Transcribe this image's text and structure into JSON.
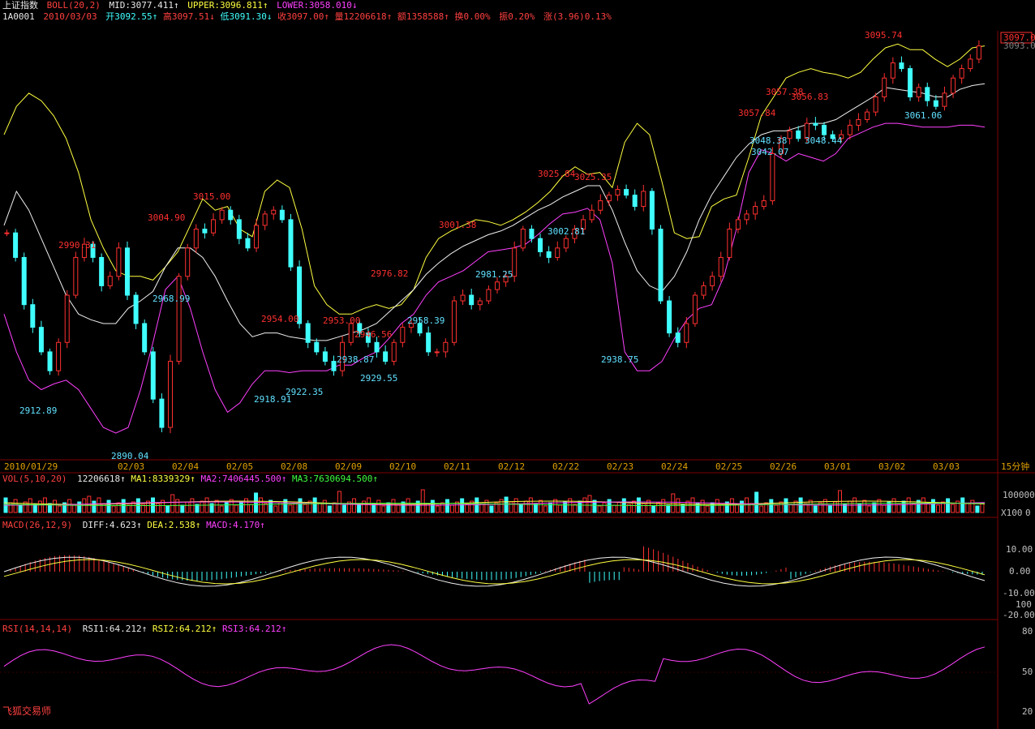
{
  "header": {
    "index_name": "上证指数",
    "indicator": "BOLL(20,2)",
    "mid_label": "MID:3077.411↑",
    "upper_label": "UPPER:3096.811↑",
    "lower_label": "LOWER:3058.010↓",
    "code": "1A0001",
    "date": "2010/03/03",
    "open": "开3092.55↑",
    "high": "高3097.51↓",
    "low": "低3091.30↓",
    "close": "收3097.00↑",
    "volume": "量12206618↑",
    "amount": "额1358588↑",
    "turnover": "换0.00%",
    "amplitude": "振0.20%",
    "change": "涨(3.96)0.13%"
  },
  "colors": {
    "up": "#ff3030",
    "down": "#40ffff",
    "upper": "#ffff40",
    "mid": "#f0f0f0",
    "lower": "#ff40ff",
    "grid": "#800000"
  },
  "price_panel": {
    "current_price_tag": "3097.0",
    "current_price_tag2": "3093.0"
  },
  "x_axis": {
    "dates": [
      "2010/01/29",
      "02/03",
      "02/04",
      "02/05",
      "02/08",
      "02/09",
      "02/10",
      "02/11",
      "02/12",
      "02/22",
      "02/23",
      "02/24",
      "02/25",
      "02/26",
      "03/01",
      "03/02",
      "03/03"
    ],
    "period": "15分钟"
  },
  "vol_panel": {
    "label": "VOL(5,10,20)",
    "value": "12206618↑",
    "ma1": "MA1:8339329↑",
    "ma2": "MA2:7406445.500↑",
    "ma3": "MA3:7630694.500↑",
    "axis_top": "100000",
    "axis_unit": "X100",
    "axis_zero": "0"
  },
  "macd_panel": {
    "label": "MACD(26,12,9)",
    "diff": "DIFF:4.623↑",
    "dea": "DEA:2.538↑",
    "macd": "MACD:4.170↑",
    "ticks": [
      "10.00",
      "0.00",
      "-10.00",
      "100",
      "-20.00"
    ]
  },
  "rsi_panel": {
    "label": "RSI(14,14,14)",
    "rsi1": "RSI1:64.212↑",
    "rsi2": "RSI2:64.212↑",
    "rsi3": "RSI3:64.212↑",
    "ticks": [
      "80",
      "50",
      "20"
    ]
  },
  "watermark": "飞狐交易师",
  "chart_data": {
    "type": "candlestick",
    "title": "上证指数",
    "ylim": [
      2880,
      3105
    ],
    "upper": [
      3050,
      3065,
      3072,
      3068,
      3060,
      3048,
      3030,
      3005,
      2990,
      2978,
      2975,
      2975,
      2973,
      2980,
      2988,
      3002,
      3016,
      3010,
      3012,
      3000,
      2996,
      3020,
      3026,
      3022,
      3000,
      2970,
      2960,
      2955,
      2955,
      2958,
      2960,
      2958,
      2960,
      2968,
      2985,
      2995,
      2999,
      3002,
      3005,
      3004,
      3002,
      3005,
      3009,
      3014,
      3020,
      3028,
      3033,
      3029,
      3030,
      3022,
      3046,
      3056,
      3050,
      3025,
      2998,
      2995,
      2996,
      3012,
      3016,
      3018,
      3038,
      3060,
      3070,
      3080,
      3083,
      3085,
      3083,
      3082,
      3080,
      3083,
      3090,
      3096,
      3098,
      3095,
      3095,
      3090,
      3086,
      3090,
      3096,
      3097
    ],
    "mid": [
      3002,
      3020,
      3010,
      2995,
      2980,
      2965,
      2955,
      2952,
      2950,
      2950,
      2958,
      2962,
      2967,
      2980,
      2990,
      2990,
      2985,
      2975,
      2962,
      2950,
      2943,
      2945,
      2945,
      2943,
      2942,
      2941,
      2941,
      2943,
      2945,
      2947,
      2950,
      2956,
      2962,
      2968,
      2976,
      2982,
      2987,
      2991,
      2994,
      2997,
      2999,
      3002,
      3006,
      3010,
      3013,
      3017,
      3020,
      3023,
      3023,
      3010,
      2993,
      2978,
      2970,
      2967,
      2975,
      2988,
      3005,
      3018,
      3028,
      3038,
      3045,
      3050,
      3052,
      3052,
      3054,
      3056,
      3056,
      3058,
      3062,
      3066,
      3070,
      3075,
      3074,
      3073,
      3072,
      3070,
      3070,
      3074,
      3076,
      3077
    ],
    "lower": [
      2955,
      2935,
      2920,
      2915,
      2918,
      2920,
      2915,
      2905,
      2895,
      2892,
      2895,
      2915,
      2940,
      2968,
      2975,
      2958,
      2935,
      2915,
      2903,
      2908,
      2918,
      2925,
      2925,
      2924,
      2925,
      2925,
      2925,
      2928,
      2928,
      2932,
      2935,
      2942,
      2950,
      2955,
      2965,
      2972,
      2975,
      2978,
      2983,
      2988,
      2989,
      2990,
      2992,
      2997,
      3003,
      3008,
      3009,
      3011,
      3005,
      2982,
      2935,
      2925,
      2925,
      2930,
      2942,
      2952,
      2958,
      2960,
      2975,
      3000,
      3030,
      3042,
      3040,
      3036,
      3040,
      3038,
      3036,
      3040,
      3048,
      3051,
      3054,
      3056,
      3056,
      3055,
      3054,
      3054,
      3054,
      3055,
      3055,
      3054
    ],
    "candles_note": "open/close estimated from screenshot; used for candle bodies",
    "closes": [
      2998,
      2985,
      2960,
      2948,
      2935,
      2925,
      2940,
      2965,
      2985,
      2992,
      2985,
      2970,
      2975,
      2990,
      2965,
      2950,
      2935,
      2910,
      2895,
      2930,
      2975,
      2990,
      3000,
      2998,
      3005,
      3010,
      3005,
      2995,
      2990,
      3002,
      3008,
      3010,
      3005,
      2980,
      2950,
      2940,
      2935,
      2930,
      2925,
      2940,
      2950,
      2945,
      2940,
      2935,
      2930,
      2940,
      2948,
      2950,
      2945,
      2935,
      2935,
      2940,
      2962,
      2965,
      2960,
      2962,
      2968,
      2972,
      2975,
      2990,
      3000,
      2995,
      2988,
      2985,
      2990,
      2995,
      3000,
      3005,
      3010,
      3015,
      3018,
      3021,
      3018,
      3012,
      3020,
      3000,
      2962,
      2945,
      2940,
      2950,
      2965,
      2970,
      2975,
      2985,
      3000,
      3005,
      3008,
      3012,
      3015,
      3040,
      3048,
      3052,
      3048,
      3056,
      3055,
      3050,
      3048,
      3050,
      3055,
      3058,
      3062,
      3070,
      3080,
      3088,
      3085,
      3070,
      3075,
      3068,
      3065,
      3072,
      3080,
      3085,
      3090,
      3097
    ]
  },
  "price_labels": [
    {
      "text": "2990.31",
      "color": "red"
    },
    {
      "text": "3004.90",
      "color": "red"
    },
    {
      "text": "3015.00",
      "color": "red"
    },
    {
      "text": "2968.99",
      "color": "cyan"
    },
    {
      "text": "2912.89",
      "color": "cyan"
    },
    {
      "text": "2890.04",
      "color": "cyan"
    },
    {
      "text": "2954.00",
      "color": "red"
    },
    {
      "text": "2953.00",
      "color": "red"
    },
    {
      "text": "2946.56",
      "color": "red"
    },
    {
      "text": "2918.91",
      "color": "cyan"
    },
    {
      "text": "2922.35",
      "color": "cyan"
    },
    {
      "text": "2938.87",
      "color": "cyan"
    },
    {
      "text": "2929.55",
      "color": "cyan"
    },
    {
      "text": "2976.82",
      "color": "red"
    },
    {
      "text": "2958.39",
      "color": "cyan"
    },
    {
      "text": "3001.38",
      "color": "red"
    },
    {
      "text": "2981.25",
      "color": "cyan"
    },
    {
      "text": "3025.84",
      "color": "red"
    },
    {
      "text": "3025.35",
      "color": "red"
    },
    {
      "text": "3002.81",
      "color": "cyan"
    },
    {
      "text": "2938.75",
      "color": "cyan"
    },
    {
      "text": "3057.84",
      "color": "red"
    },
    {
      "text": "3057.38",
      "color": "red"
    },
    {
      "text": "3056.83",
      "color": "red"
    },
    {
      "text": "3042.07",
      "color": "cyan"
    },
    {
      "text": "3048.38",
      "color": "cyan"
    },
    {
      "text": "3048.44",
      "color": "cyan"
    },
    {
      "text": "3095.74",
      "color": "red"
    },
    {
      "text": "3061.06",
      "color": "cyan"
    }
  ]
}
